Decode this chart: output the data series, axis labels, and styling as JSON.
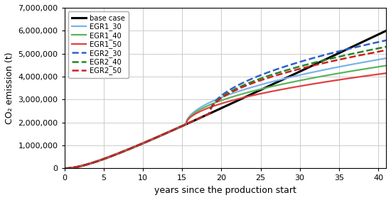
{
  "title": "",
  "xlabel": "years since the production start",
  "ylabel": "CO₂ emission (t)",
  "xlim": [
    0,
    41
  ],
  "ylim": [
    0,
    7000000
  ],
  "yticks": [
    0,
    1000000,
    2000000,
    3000000,
    4000000,
    5000000,
    6000000,
    7000000
  ],
  "xticks": [
    0,
    5,
    10,
    15,
    20,
    25,
    30,
    35,
    40
  ],
  "base_A": 150000,
  "base_b": 0.72,
  "egr1_split": 15.5,
  "egr2_split": 18.5,
  "egr_alpha": 0.52,
  "finals": {
    "base case": 6000000,
    "EGR1_30": 4800000,
    "EGR1_40": 4480000,
    "EGR1_50": 4150000,
    "EGR2_30": 5580000,
    "EGR2_40": 5300000,
    "EGR2_50": 5150000
  },
  "series": [
    {
      "label": "base case",
      "color": "#000000",
      "ls": "-",
      "lw": 2.2,
      "group": "base"
    },
    {
      "label": "EGR1_30",
      "color": "#7ab3e8",
      "ls": "-",
      "lw": 1.6,
      "group": "egr1"
    },
    {
      "label": "EGR1_40",
      "color": "#5ab55a",
      "ls": "-",
      "lw": 1.6,
      "group": "egr1"
    },
    {
      "label": "EGR1_50",
      "color": "#e04040",
      "ls": "-",
      "lw": 1.6,
      "group": "egr1"
    },
    {
      "label": "EGR2_30",
      "color": "#3060cc",
      "ls": "--",
      "lw": 1.8,
      "group": "egr2"
    },
    {
      "label": "EGR2_40",
      "color": "#228822",
      "ls": "--",
      "lw": 1.8,
      "group": "egr2"
    },
    {
      "label": "EGR2_50",
      "color": "#cc2020",
      "ls": "--",
      "lw": 1.8,
      "group": "egr2"
    }
  ],
  "background_color": "#ffffff",
  "grid_color": "#cccccc"
}
